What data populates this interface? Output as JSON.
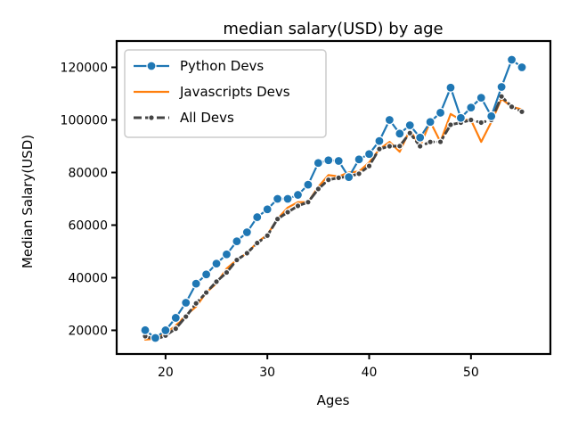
{
  "chart_data": {
    "type": "line",
    "title": "median salary(USD) by age",
    "xlabel": "Ages",
    "ylabel": "Median Salary(USD)",
    "xlim": [
      15.2,
      57.8
    ],
    "ylim": [
      11000,
      130000
    ],
    "xticks": [
      20,
      30,
      40,
      50
    ],
    "yticks": [
      20000,
      40000,
      60000,
      80000,
      100000,
      120000
    ],
    "grid": false,
    "legend_position": "top-left",
    "x": [
      18,
      19,
      20,
      21,
      22,
      23,
      24,
      25,
      26,
      27,
      28,
      29,
      30,
      31,
      32,
      33,
      34,
      35,
      36,
      37,
      38,
      39,
      40,
      41,
      42,
      43,
      44,
      45,
      46,
      47,
      48,
      49,
      50,
      51,
      52,
      53,
      54,
      55
    ],
    "series": [
      {
        "name": "Python Devs",
        "color": "#1f77b4",
        "style": "solid-circle-markers",
        "values": [
          20046,
          17100,
          20000,
          24744,
          30500,
          37732,
          41247,
          45372,
          48876,
          53850,
          57287,
          63016,
          65998,
          70003,
          70000,
          71496,
          75370,
          83640,
          84666,
          84392,
          78254,
          85000,
          87038,
          91991,
          100000,
          94796,
          97962,
          93302,
          99240,
          102736,
          112285,
          100771,
          104708,
          108423,
          101407,
          112542,
          122870,
          120000
        ]
      },
      {
        "name": "Javascripts Devs",
        "color": "#ff7f0e",
        "style": "solid",
        "values": [
          16446,
          16791,
          18942,
          21780,
          25704,
          29000,
          34372,
          37810,
          43515,
          46823,
          49293,
          53437,
          56373,
          62375,
          66674,
          68745,
          68746,
          74583,
          79000,
          78508,
          79996,
          80403,
          83820,
          88833,
          91660,
          87892,
          96243,
          90000,
          99313,
          91660,
          102264,
          100000,
          100000,
          91660,
          99240,
          108000,
          105000,
          104000
        ]
      },
      {
        "name": "All Devs",
        "color": "#444444",
        "style": "dashed-dot-markers",
        "values": [
          17784,
          16500,
          18012,
          20628,
          25206,
          30252,
          34368,
          38496,
          42000,
          46752,
          49320,
          53200,
          56000,
          62316,
          64928,
          67317,
          68748,
          73752,
          77232,
          78000,
          78508,
          79536,
          82488,
          88935,
          90000,
          90056,
          95000,
          90000,
          91633,
          91660,
          98150,
          98964,
          100000,
          98988,
          100000,
          108923,
          105000,
          103117
        ]
      }
    ]
  }
}
